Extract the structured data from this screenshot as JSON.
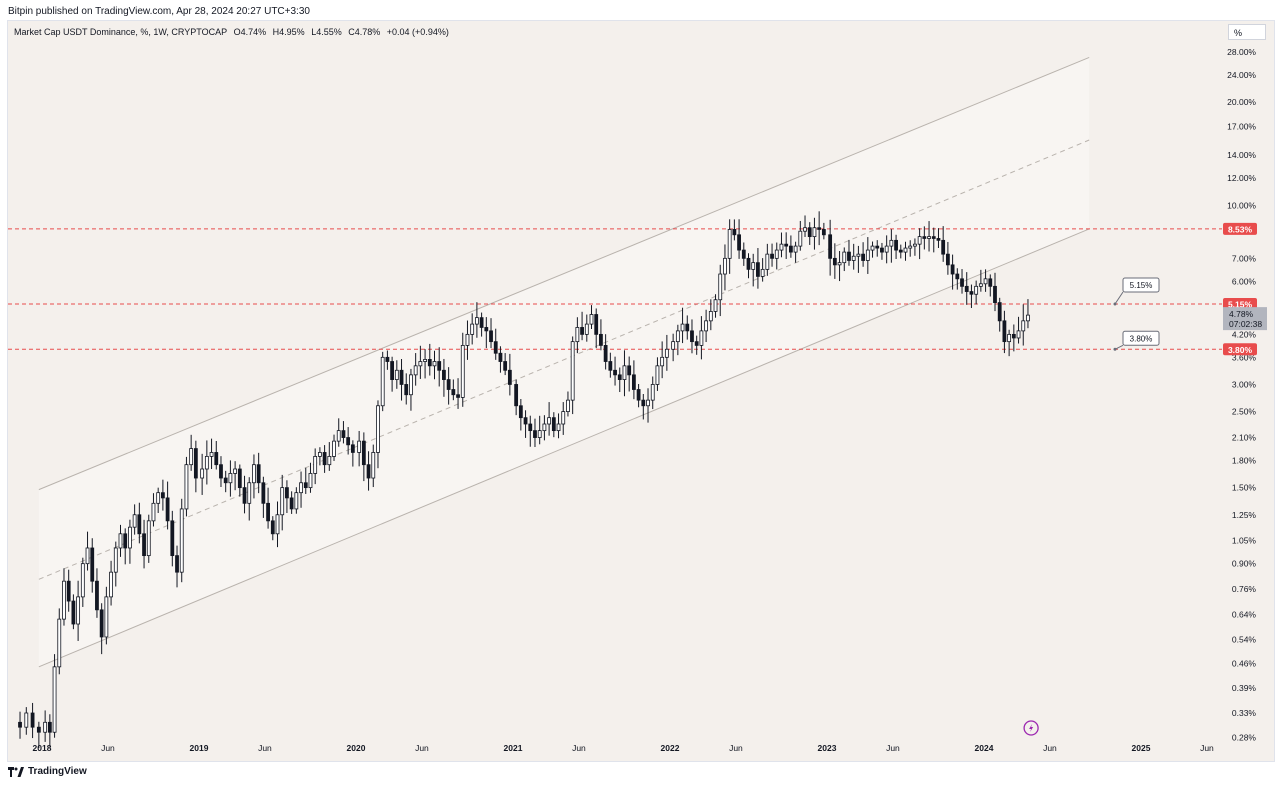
{
  "header": {
    "published_text": "Bitpin published on TradingView.com, Apr 28, 2024 20:27 UTC+3:30"
  },
  "symbol": {
    "name": "Market Cap USDT Dominance, %, 1W, CRYPTOCAP",
    "open": "O4.74%",
    "high": "H4.95%",
    "low": "L4.55%",
    "close": "C4.78%",
    "change": "+0.04 (+0.94%)"
  },
  "scale_button": "%",
  "footer": {
    "brand": "TradingView"
  },
  "colors": {
    "background": "#f4f0ec",
    "candle": "#131722",
    "red_line": "#e84c4c",
    "channel": "#b9b3ad",
    "lightning": "#9c27b0"
  },
  "chart_data": {
    "type": "candlestick",
    "scale": "log",
    "ylim": [
      0.28,
      30
    ],
    "y_ticks": [
      "28.00%",
      "24.00%",
      "20.00%",
      "17.00%",
      "14.00%",
      "12.00%",
      "10.00%",
      "7.00%",
      "6.00%",
      "4.20%",
      "3.60%",
      "3.00%",
      "2.50%",
      "2.10%",
      "1.80%",
      "1.50%",
      "1.25%",
      "1.05%",
      "0.90%",
      "0.76%",
      "0.64%",
      "0.54%",
      "0.46%",
      "0.39%",
      "0.33%",
      "0.28%"
    ],
    "x_ticks": [
      {
        "label": "2018",
        "bold": true,
        "t": 2018.0
      },
      {
        "label": "Jun",
        "bold": false,
        "t": 2018.42
      },
      {
        "label": "2019",
        "bold": true,
        "t": 2019.0
      },
      {
        "label": "Jun",
        "bold": false,
        "t": 2019.42
      },
      {
        "label": "2020",
        "bold": true,
        "t": 2020.0
      },
      {
        "label": "Jun",
        "bold": false,
        "t": 2020.42
      },
      {
        "label": "2021",
        "bold": true,
        "t": 2021.0
      },
      {
        "label": "Jun",
        "bold": false,
        "t": 2021.42
      },
      {
        "label": "2022",
        "bold": true,
        "t": 2022.0
      },
      {
        "label": "Jun",
        "bold": false,
        "t": 2022.42
      },
      {
        "label": "2023",
        "bold": true,
        "t": 2023.0
      },
      {
        "label": "Jun",
        "bold": false,
        "t": 2023.42
      },
      {
        "label": "2024",
        "bold": true,
        "t": 2024.0
      },
      {
        "label": "Jun",
        "bold": false,
        "t": 2024.42
      },
      {
        "label": "2025",
        "bold": true,
        "t": 2025.0
      },
      {
        "label": "Jun",
        "bold": false,
        "t": 2025.42
      }
    ],
    "price_path": [
      [
        2017.82,
        0.31
      ],
      [
        2017.86,
        0.3
      ],
      [
        2017.9,
        0.33
      ],
      [
        2017.94,
        0.3
      ],
      [
        2017.98,
        0.29
      ],
      [
        2018.02,
        0.31
      ],
      [
        2018.05,
        0.29
      ],
      [
        2018.08,
        0.45
      ],
      [
        2018.11,
        0.62
      ],
      [
        2018.14,
        0.8
      ],
      [
        2018.17,
        0.7
      ],
      [
        2018.2,
        0.6
      ],
      [
        2018.23,
        0.72
      ],
      [
        2018.26,
        0.9
      ],
      [
        2018.29,
        1.0
      ],
      [
        2018.32,
        0.8
      ],
      [
        2018.35,
        0.66
      ],
      [
        2018.38,
        0.55
      ],
      [
        2018.41,
        0.72
      ],
      [
        2018.44,
        0.85
      ],
      [
        2018.47,
        1.0
      ],
      [
        2018.5,
        1.1
      ],
      [
        2018.53,
        1.0
      ],
      [
        2018.56,
        1.15
      ],
      [
        2018.59,
        1.25
      ],
      [
        2018.62,
        1.1
      ],
      [
        2018.65,
        0.95
      ],
      [
        2018.68,
        1.2
      ],
      [
        2018.71,
        1.35
      ],
      [
        2018.74,
        1.45
      ],
      [
        2018.77,
        1.4
      ],
      [
        2018.8,
        1.2
      ],
      [
        2018.83,
        0.95
      ],
      [
        2018.86,
        0.85
      ],
      [
        2018.89,
        1.3
      ],
      [
        2018.92,
        1.75
      ],
      [
        2018.95,
        1.95
      ],
      [
        2018.98,
        1.6
      ],
      [
        2019.02,
        1.7
      ],
      [
        2019.05,
        1.85
      ],
      [
        2019.08,
        1.9
      ],
      [
        2019.11,
        1.75
      ],
      [
        2019.14,
        1.6
      ],
      [
        2019.17,
        1.55
      ],
      [
        2019.2,
        1.65
      ],
      [
        2019.23,
        1.7
      ],
      [
        2019.26,
        1.5
      ],
      [
        2019.29,
        1.35
      ],
      [
        2019.32,
        1.55
      ],
      [
        2019.35,
        1.75
      ],
      [
        2019.38,
        1.55
      ],
      [
        2019.41,
        1.35
      ],
      [
        2019.44,
        1.2
      ],
      [
        2019.47,
        1.1
      ],
      [
        2019.5,
        1.25
      ],
      [
        2019.53,
        1.5
      ],
      [
        2019.56,
        1.4
      ],
      [
        2019.59,
        1.3
      ],
      [
        2019.62,
        1.45
      ],
      [
        2019.65,
        1.55
      ],
      [
        2019.68,
        1.5
      ],
      [
        2019.71,
        1.65
      ],
      [
        2019.74,
        1.85
      ],
      [
        2019.77,
        1.9
      ],
      [
        2019.8,
        1.75
      ],
      [
        2019.83,
        1.85
      ],
      [
        2019.86,
        2.05
      ],
      [
        2019.89,
        2.2
      ],
      [
        2019.92,
        2.1
      ],
      [
        2019.95,
        2.0
      ],
      [
        2019.98,
        1.9
      ],
      [
        2020.02,
        2.05
      ],
      [
        2020.05,
        1.75
      ],
      [
        2020.08,
        1.6
      ],
      [
        2020.11,
        1.9
      ],
      [
        2020.14,
        2.6
      ],
      [
        2020.17,
        3.6
      ],
      [
        2020.2,
        3.5
      ],
      [
        2020.23,
        3.1
      ],
      [
        2020.26,
        3.3
      ],
      [
        2020.29,
        3.0
      ],
      [
        2020.32,
        2.8
      ],
      [
        2020.35,
        3.2
      ],
      [
        2020.38,
        3.4
      ],
      [
        2020.41,
        3.5
      ],
      [
        2020.44,
        3.55
      ],
      [
        2020.47,
        3.4
      ],
      [
        2020.5,
        3.5
      ],
      [
        2020.53,
        3.3
      ],
      [
        2020.56,
        3.1
      ],
      [
        2020.59,
        2.9
      ],
      [
        2020.62,
        2.8
      ],
      [
        2020.65,
        2.75
      ],
      [
        2020.68,
        3.9
      ],
      [
        2020.71,
        4.2
      ],
      [
        2020.74,
        4.5
      ],
      [
        2020.77,
        4.7
      ],
      [
        2020.8,
        4.4
      ],
      [
        2020.83,
        4.3
      ],
      [
        2020.86,
        4.0
      ],
      [
        2020.89,
        3.7
      ],
      [
        2020.92,
        3.5
      ],
      [
        2020.95,
        3.3
      ],
      [
        2020.98,
        3.0
      ],
      [
        2021.02,
        2.6
      ],
      [
        2021.05,
        2.4
      ],
      [
        2021.08,
        2.3
      ],
      [
        2021.11,
        2.2
      ],
      [
        2021.14,
        2.1
      ],
      [
        2021.17,
        2.2
      ],
      [
        2021.2,
        2.3
      ],
      [
        2021.23,
        2.4
      ],
      [
        2021.26,
        2.2
      ],
      [
        2021.29,
        2.3
      ],
      [
        2021.32,
        2.5
      ],
      [
        2021.35,
        2.7
      ],
      [
        2021.38,
        4.0
      ],
      [
        2021.41,
        4.4
      ],
      [
        2021.44,
        4.2
      ],
      [
        2021.47,
        4.5
      ],
      [
        2021.5,
        4.8
      ],
      [
        2021.53,
        4.2
      ],
      [
        2021.56,
        3.9
      ],
      [
        2021.59,
        3.5
      ],
      [
        2021.62,
        3.3
      ],
      [
        2021.65,
        3.2
      ],
      [
        2021.68,
        3.1
      ],
      [
        2021.71,
        3.4
      ],
      [
        2021.74,
        3.2
      ],
      [
        2021.77,
        2.9
      ],
      [
        2021.8,
        2.7
      ],
      [
        2021.83,
        2.6
      ],
      [
        2021.86,
        2.7
      ],
      [
        2021.89,
        3.0
      ],
      [
        2021.92,
        3.4
      ],
      [
        2021.95,
        3.6
      ],
      [
        2021.98,
        3.8
      ],
      [
        2022.02,
        4.0
      ],
      [
        2022.05,
        4.3
      ],
      [
        2022.08,
        4.5
      ],
      [
        2022.11,
        4.3
      ],
      [
        2022.14,
        4.0
      ],
      [
        2022.17,
        3.9
      ],
      [
        2022.2,
        4.3
      ],
      [
        2022.23,
        4.6
      ],
      [
        2022.26,
        4.9
      ],
      [
        2022.29,
        5.3
      ],
      [
        2022.32,
        6.3
      ],
      [
        2022.35,
        7.0
      ],
      [
        2022.38,
        8.5
      ],
      [
        2022.41,
        8.2
      ],
      [
        2022.44,
        7.4
      ],
      [
        2022.47,
        7.0
      ],
      [
        2022.5,
        6.5
      ],
      [
        2022.53,
        6.8
      ],
      [
        2022.56,
        6.2
      ],
      [
        2022.59,
        6.5
      ],
      [
        2022.62,
        7.2
      ],
      [
        2022.65,
        7.0
      ],
      [
        2022.68,
        7.4
      ],
      [
        2022.71,
        7.7
      ],
      [
        2022.74,
        7.6
      ],
      [
        2022.77,
        7.3
      ],
      [
        2022.8,
        7.6
      ],
      [
        2022.83,
        8.4
      ],
      [
        2022.86,
        8.6
      ],
      [
        2022.89,
        8.1
      ],
      [
        2022.92,
        8.6
      ],
      [
        2022.95,
        8.5
      ],
      [
        2022.98,
        8.2
      ],
      [
        2023.02,
        7.0
      ],
      [
        2023.05,
        6.7
      ],
      [
        2023.08,
        6.8
      ],
      [
        2023.11,
        7.3
      ],
      [
        2023.14,
        6.9
      ],
      [
        2023.17,
        7.1
      ],
      [
        2023.2,
        7.2
      ],
      [
        2023.23,
        6.9
      ],
      [
        2023.26,
        7.4
      ],
      [
        2023.29,
        7.6
      ],
      [
        2023.32,
        7.5
      ],
      [
        2023.35,
        7.3
      ],
      [
        2023.38,
        7.6
      ],
      [
        2023.41,
        7.9
      ],
      [
        2023.44,
        7.4
      ],
      [
        2023.47,
        7.3
      ],
      [
        2023.5,
        7.5
      ],
      [
        2023.53,
        7.6
      ],
      [
        2023.56,
        7.7
      ],
      [
        2023.59,
        8.1
      ],
      [
        2023.62,
        8.0
      ],
      [
        2023.65,
        8.1
      ],
      [
        2023.68,
        8.0
      ],
      [
        2023.71,
        7.9
      ],
      [
        2023.74,
        7.2
      ],
      [
        2023.77,
        6.7
      ],
      [
        2023.8,
        6.3
      ],
      [
        2023.83,
        6.1
      ],
      [
        2023.86,
        5.8
      ],
      [
        2023.89,
        5.6
      ],
      [
        2023.92,
        5.5
      ],
      [
        2023.95,
        5.8
      ],
      [
        2023.98,
        5.9
      ],
      [
        2024.01,
        6.1
      ],
      [
        2024.04,
        5.8
      ],
      [
        2024.07,
        5.2
      ],
      [
        2024.1,
        4.6
      ],
      [
        2024.13,
        4.0
      ],
      [
        2024.16,
        4.2
      ],
      [
        2024.19,
        4.1
      ],
      [
        2024.22,
        4.3
      ],
      [
        2024.25,
        4.6
      ],
      [
        2024.28,
        4.78
      ]
    ],
    "last_candle": {
      "open": 4.74,
      "high": 4.95,
      "low": 4.55,
      "close": 4.78
    },
    "channel": {
      "upper": [
        [
          2017.98,
          1.48
        ],
        [
          2024.67,
          27.0
        ]
      ],
      "middle": [
        [
          2017.98,
          0.81
        ],
        [
          2024.67,
          15.5
        ]
      ],
      "lower": [
        [
          2017.98,
          0.45
        ],
        [
          2024.67,
          8.53
        ]
      ]
    },
    "horizontal_levels": [
      {
        "value": 8.53,
        "label": "8.53%"
      },
      {
        "value": 5.15,
        "label": "5.15%"
      },
      {
        "value": 3.8,
        "label": "3.80%"
      }
    ],
    "price_tags": {
      "current_price": "4.78%",
      "countdown": "07:02:38"
    },
    "callouts": [
      {
        "value": 5.15,
        "label": "5.15%"
      },
      {
        "value": 3.8,
        "label": "3.80%"
      }
    ]
  }
}
